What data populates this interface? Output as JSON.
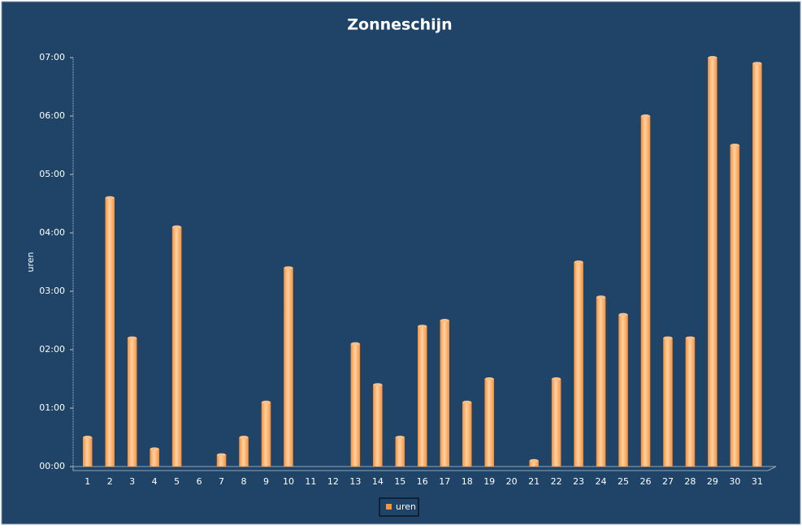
{
  "chart_data": {
    "type": "bar",
    "title": "Zonneschijn",
    "y_axis_label": "uren",
    "categories": [
      "1",
      "2",
      "3",
      "4",
      "5",
      "6",
      "7",
      "8",
      "9",
      "10",
      "11",
      "12",
      "13",
      "14",
      "15",
      "16",
      "17",
      "18",
      "19",
      "20",
      "21",
      "22",
      "23",
      "24",
      "25",
      "26",
      "27",
      "28",
      "29",
      "30",
      "31"
    ],
    "series": [
      {
        "name": "uren",
        "color": "#f7943c",
        "values": [
          0.5,
          4.6,
          2.2,
          0.3,
          4.1,
          0,
          0.2,
          0.5,
          1.1,
          3.4,
          0,
          0,
          2.1,
          1.4,
          0.5,
          2.4,
          2.5,
          1.1,
          1.5,
          0,
          0.1,
          1.5,
          3.5,
          2.9,
          2.6,
          6.0,
          2.2,
          2.2,
          7.0,
          5.5,
          6.9
        ]
      }
    ],
    "ylim": [
      0,
      7
    ],
    "yticks": [
      {
        "value": 0,
        "label": "00:00"
      },
      {
        "value": 1,
        "label": "01:00"
      },
      {
        "value": 2,
        "label": "02:00"
      },
      {
        "value": 3,
        "label": "03:00"
      },
      {
        "value": 4,
        "label": "04:00"
      },
      {
        "value": 5,
        "label": "05:00"
      },
      {
        "value": 6,
        "label": "06:00"
      },
      {
        "value": 7,
        "label": "07:00"
      }
    ],
    "legend": "bottom"
  }
}
